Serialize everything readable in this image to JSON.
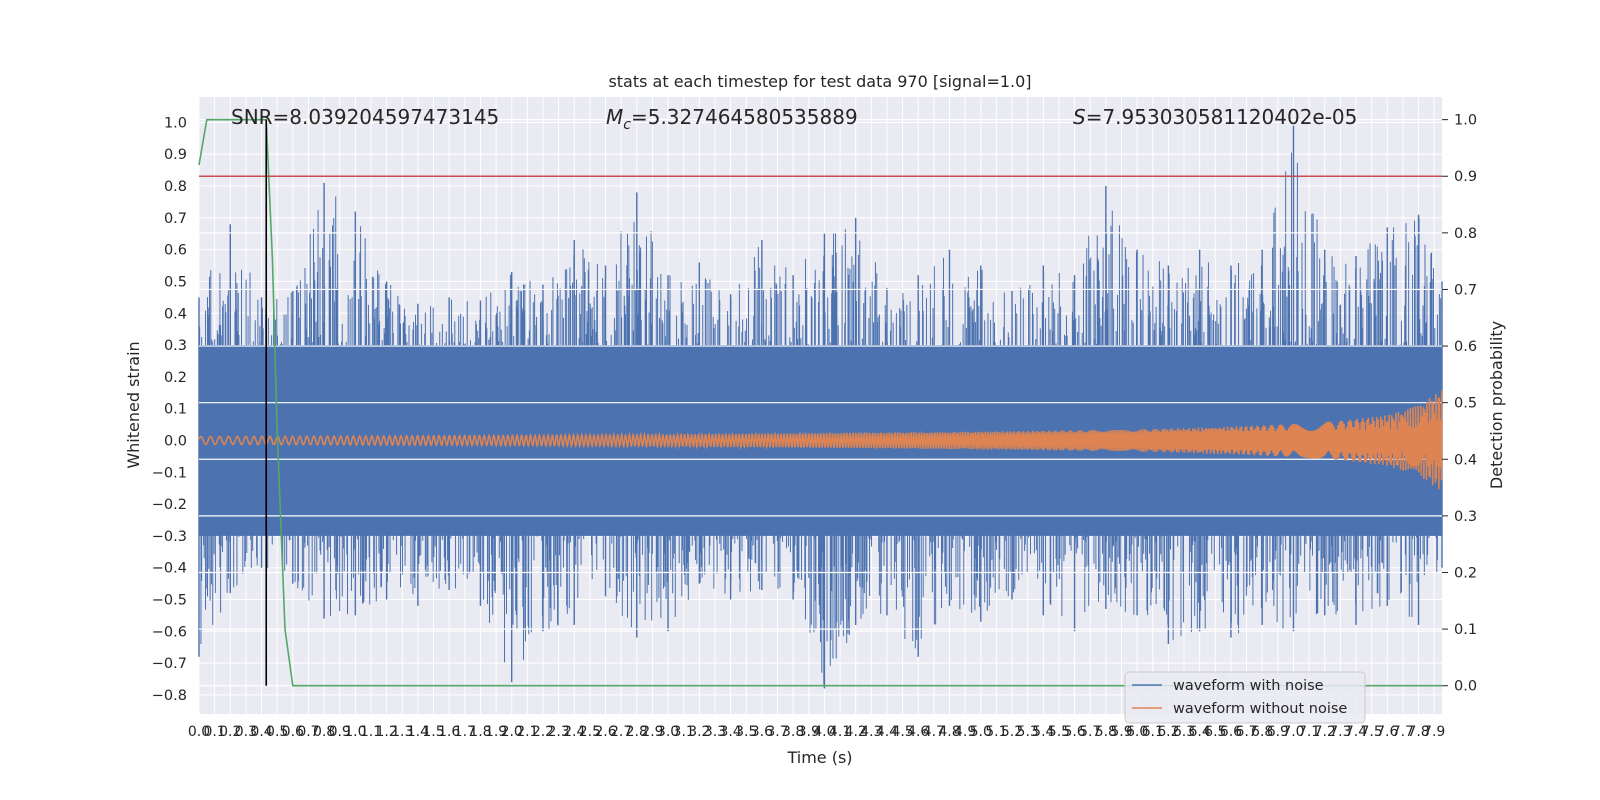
{
  "chart_data": {
    "type": "line",
    "title": "stats at each timestep for test data 970 [signal=1.0]",
    "xlabel": "Time (s)",
    "ylabel": "Whitened strain",
    "y2label": "Detection probability",
    "xlim": [
      0.0,
      7.95
    ],
    "ylim": [
      -0.86,
      1.08
    ],
    "y2lim": [
      -0.05,
      1.04
    ],
    "xticks": [
      0.0,
      0.1,
      0.2,
      0.3,
      0.4,
      0.5,
      0.6,
      0.7,
      0.8,
      0.9,
      1.0,
      1.1,
      1.2,
      1.3,
      1.4,
      1.5,
      1.6,
      1.7,
      1.8,
      1.9,
      2.0,
      2.1,
      2.2,
      2.3,
      2.4,
      2.5,
      2.6,
      2.7,
      2.8,
      2.9,
      3.0,
      3.1,
      3.2,
      3.3,
      3.4,
      3.5,
      3.6,
      3.7,
      3.8,
      3.9,
      4.0,
      4.1,
      4.2,
      4.3,
      4.4,
      4.5,
      4.6,
      4.7,
      4.8,
      4.9,
      5.0,
      5.1,
      5.2,
      5.3,
      5.4,
      5.5,
      5.6,
      5.7,
      5.8,
      5.9,
      6.0,
      6.1,
      6.2,
      6.3,
      6.4,
      6.5,
      6.6,
      6.7,
      6.8,
      6.9,
      7.0,
      7.1,
      7.2,
      7.3,
      7.4,
      7.5,
      7.6,
      7.7,
      7.8,
      7.9
    ],
    "yticks": [
      -0.8,
      -0.7,
      -0.6,
      -0.5,
      -0.4,
      -0.3,
      -0.2,
      -0.1,
      0.0,
      0.1,
      0.2,
      0.3,
      0.4,
      0.5,
      0.6,
      0.7,
      0.8,
      0.9,
      1.0
    ],
    "y2ticks": [
      0.0,
      0.1,
      0.2,
      0.3,
      0.4,
      0.5,
      0.6,
      0.7,
      0.8,
      0.9,
      1.0
    ],
    "grid": true,
    "legend_position": "lower-right",
    "annotations": {
      "snr": "SNR=8.039204597473145",
      "mc_symbol": "M",
      "mc_sub": "c",
      "mc_value": "=5.327464580535889",
      "s_symbol": "S",
      "s_value": "=7.953030581120402e-05"
    },
    "series": [
      {
        "name": "waveform with noise",
        "color": "#4c72b0",
        "axis": "left",
        "envelope_x": [
          0.0,
          0.2,
          0.4,
          0.6,
          0.8,
          1.0,
          1.2,
          1.4,
          1.6,
          1.8,
          2.0,
          2.2,
          2.4,
          2.6,
          2.8,
          3.0,
          3.2,
          3.4,
          3.6,
          3.8,
          4.0,
          4.2,
          4.4,
          4.6,
          4.8,
          5.0,
          5.2,
          5.4,
          5.6,
          5.8,
          6.0,
          6.2,
          6.4,
          6.6,
          6.8,
          7.0,
          7.2,
          7.4,
          7.6,
          7.8,
          7.95
        ],
        "envelope_upper": [
          0.45,
          0.68,
          0.45,
          0.47,
          0.81,
          0.72,
          0.5,
          0.43,
          0.45,
          0.44,
          0.53,
          0.49,
          0.63,
          0.55,
          0.78,
          0.52,
          0.56,
          0.46,
          0.63,
          0.52,
          0.65,
          0.7,
          0.48,
          0.52,
          0.6,
          0.55,
          0.47,
          0.55,
          0.52,
          0.8,
          0.6,
          0.55,
          0.6,
          0.55,
          0.6,
          0.99,
          0.6,
          0.58,
          0.67,
          0.71,
          0.5
        ],
        "envelope_lower": [
          -0.68,
          -0.48,
          -0.4,
          -0.45,
          -0.56,
          -0.55,
          -0.5,
          -0.52,
          -0.47,
          -0.52,
          -0.76,
          -0.6,
          -0.58,
          -0.49,
          -0.62,
          -0.6,
          -0.45,
          -0.5,
          -0.47,
          -0.5,
          -0.78,
          -0.58,
          -0.55,
          -0.68,
          -0.52,
          -0.57,
          -0.5,
          -0.55,
          -0.6,
          -0.53,
          -0.55,
          -0.64,
          -0.6,
          -0.62,
          -0.58,
          -0.6,
          -0.55,
          -0.58,
          -0.52,
          -0.58,
          -0.4
        ]
      },
      {
        "name": "waveform without noise",
        "color": "#dd8452",
        "axis": "left",
        "amplitude_x": [
          0.0,
          1.0,
          2.0,
          3.0,
          4.0,
          5.0,
          6.0,
          6.5,
          7.0,
          7.3,
          7.6,
          7.8,
          7.95
        ],
        "amplitude": [
          0.012,
          0.014,
          0.016,
          0.019,
          0.023,
          0.028,
          0.035,
          0.042,
          0.052,
          0.062,
          0.08,
          0.11,
          0.16
        ]
      },
      {
        "color": "#55a868",
        "axis": "right",
        "x": [
          0.0,
          0.05,
          0.1,
          0.2,
          0.3,
          0.4,
          0.43,
          0.47,
          0.5,
          0.55,
          0.6,
          7.95
        ],
        "y": [
          0.92,
          1.0,
          1.0,
          1.0,
          1.0,
          1.0,
          1.0,
          0.75,
          0.45,
          0.1,
          0.0,
          0.0
        ]
      },
      {
        "color": "#c44e52",
        "axis": "right",
        "x": [
          0.0,
          7.95
        ],
        "y": [
          0.9,
          0.9
        ]
      },
      {
        "color": "#000000",
        "axis": "right",
        "x": [
          0.43,
          0.43
        ],
        "y": [
          0.0,
          1.0
        ]
      }
    ]
  }
}
